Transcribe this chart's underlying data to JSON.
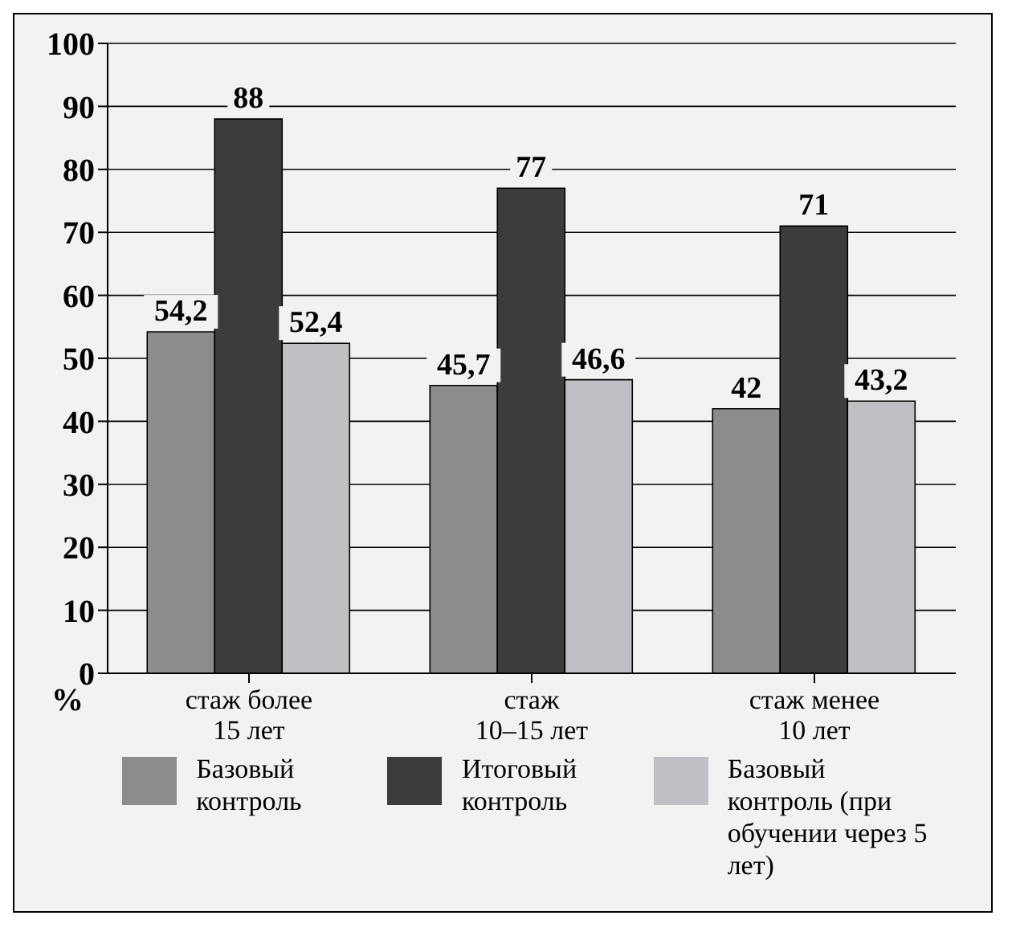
{
  "chart_data": {
    "type": "bar",
    "ylabel": "%",
    "categories": [
      "стаж более\n15 лет",
      "стаж\n10–15 лет",
      "стаж менее\n10 лет"
    ],
    "series": [
      {
        "name": "Базовый контроль",
        "color": "#8c8c8e",
        "values": [
          54.2,
          45.7,
          42
        ],
        "value_labels": [
          "54,2",
          "45,7",
          "42"
        ]
      },
      {
        "name": "Итоговый контроль",
        "color": "#3c3c3c",
        "values": [
          88,
          77,
          71
        ],
        "value_labels": [
          "88",
          "77",
          "71"
        ]
      },
      {
        "name": "Базовый контроль (при обучении через 5 лет)",
        "color": "#c0c0c4",
        "values": [
          52.4,
          46.6,
          43.2
        ],
        "value_labels": [
          "52,4",
          "46,6",
          "43,2"
        ]
      }
    ],
    "ylim": [
      0,
      100
    ],
    "yticks": [
      0,
      10,
      20,
      30,
      40,
      50,
      60,
      70,
      80,
      90,
      100
    ],
    "grid": "y",
    "legend": "bottom"
  }
}
